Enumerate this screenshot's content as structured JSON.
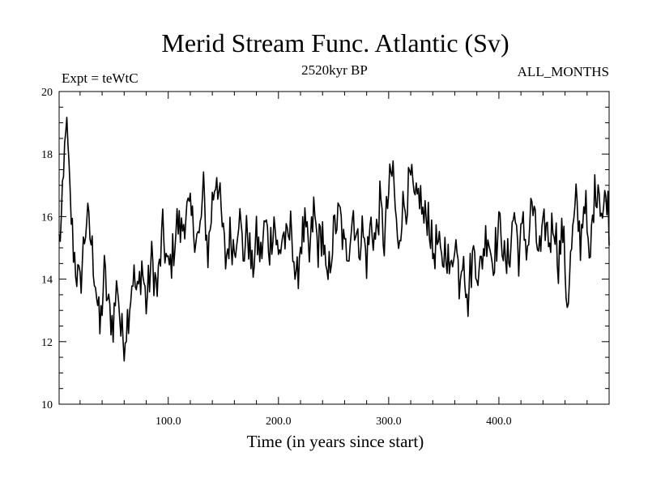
{
  "chart_data": {
    "type": "line",
    "title": "Merid Stream Func. Atlantic (Sv)",
    "subtitle_left": "Expt = teWtC",
    "subtitle_center": "2520kyr BP",
    "subtitle_right": "ALL_MONTHS",
    "xlabel": "Time (in years since start)",
    "ylabel": "",
    "xlim": [
      1,
      500
    ],
    "ylim": [
      10,
      20
    ],
    "xticks": [
      100,
      200,
      300,
      400
    ],
    "xtick_labels": [
      "100.0",
      "200.0",
      "300.0",
      "400.0"
    ],
    "yticks": [
      10,
      12,
      14,
      16,
      18,
      20
    ],
    "ytick_labels": [
      "10",
      "12",
      "14",
      "16",
      "18",
      "20"
    ],
    "series": [
      {
        "name": "Merid Stream Func. Atlantic",
        "color": "#000000",
        "keypoints": [
          [
            1,
            15.2
          ],
          [
            3,
            15.8
          ],
          [
            5,
            17.0
          ],
          [
            7,
            19.2
          ],
          [
            9,
            18.0
          ],
          [
            11,
            16.5
          ],
          [
            14,
            15.0
          ],
          [
            17,
            14.2
          ],
          [
            20,
            13.7
          ],
          [
            23,
            15.0
          ],
          [
            26,
            16.0
          ],
          [
            30,
            15.2
          ],
          [
            34,
            14.0
          ],
          [
            38,
            12.3
          ],
          [
            42,
            14.2
          ],
          [
            46,
            13.0
          ],
          [
            50,
            12.6
          ],
          [
            54,
            14.0
          ],
          [
            57,
            12.3
          ],
          [
            60,
            12.1
          ],
          [
            64,
            13.0
          ],
          [
            68,
            14.2
          ],
          [
            72,
            13.4
          ],
          [
            76,
            14.5
          ],
          [
            80,
            13.2
          ],
          [
            85,
            14.6
          ],
          [
            90,
            13.6
          ],
          [
            95,
            15.5
          ],
          [
            100,
            14.2
          ],
          [
            104,
            14.8
          ],
          [
            108,
            15.8
          ],
          [
            112,
            15.5
          ],
          [
            116,
            16.2
          ],
          [
            120,
            16.0
          ],
          [
            124,
            15.6
          ],
          [
            128,
            15.2
          ],
          [
            132,
            16.8
          ],
          [
            136,
            14.8
          ],
          [
            140,
            16.5
          ],
          [
            144,
            17.5
          ],
          [
            148,
            16.0
          ],
          [
            152,
            14.6
          ],
          [
            156,
            15.4
          ],
          [
            160,
            15.0
          ],
          [
            164,
            16.2
          ],
          [
            168,
            14.8
          ],
          [
            172,
            15.6
          ],
          [
            176,
            14.2
          ],
          [
            180,
            15.3
          ],
          [
            184,
            14.7
          ],
          [
            188,
            15.8
          ],
          [
            192,
            15.0
          ],
          [
            196,
            16.0
          ],
          [
            200,
            14.6
          ],
          [
            204,
            15.5
          ],
          [
            208,
            15.0
          ],
          [
            212,
            15.8
          ],
          [
            216,
            13.6
          ],
          [
            220,
            15.2
          ],
          [
            224,
            15.6
          ],
          [
            228,
            14.6
          ],
          [
            232,
            16.2
          ],
          [
            236,
            15.0
          ],
          [
            240,
            15.6
          ],
          [
            244,
            13.6
          ],
          [
            248,
            15.0
          ],
          [
            252,
            15.8
          ],
          [
            256,
            16.0
          ],
          [
            260,
            14.8
          ],
          [
            264,
            15.2
          ],
          [
            268,
            16.2
          ],
          [
            272,
            15.0
          ],
          [
            276,
            15.6
          ],
          [
            280,
            14.6
          ],
          [
            284,
            15.8
          ],
          [
            288,
            15.2
          ],
          [
            292,
            16.4
          ],
          [
            296,
            15.2
          ],
          [
            300,
            16.8
          ],
          [
            304,
            17.5
          ],
          [
            308,
            15.0
          ],
          [
            312,
            16.2
          ],
          [
            316,
            16.5
          ],
          [
            320,
            17.2
          ],
          [
            324,
            16.2
          ],
          [
            328,
            16.8
          ],
          [
            332,
            15.8
          ],
          [
            336,
            16.2
          ],
          [
            340,
            14.8
          ],
          [
            344,
            15.2
          ],
          [
            348,
            14.4
          ],
          [
            352,
            15.2
          ],
          [
            356,
            14.0
          ],
          [
            360,
            15.5
          ],
          [
            364,
            14.0
          ],
          [
            368,
            15.2
          ],
          [
            371,
            13.0
          ],
          [
            374,
            14.2
          ],
          [
            378,
            15.0
          ],
          [
            382,
            14.0
          ],
          [
            386,
            15.0
          ],
          [
            390,
            15.6
          ],
          [
            394,
            14.6
          ],
          [
            398,
            15.2
          ],
          [
            402,
            15.8
          ],
          [
            406,
            14.2
          ],
          [
            410,
            15.0
          ],
          [
            414,
            16.2
          ],
          [
            418,
            14.8
          ],
          [
            422,
            15.6
          ],
          [
            426,
            15.0
          ],
          [
            430,
            16.5
          ],
          [
            434,
            15.2
          ],
          [
            438,
            14.8
          ],
          [
            442,
            15.8
          ],
          [
            446,
            15.2
          ],
          [
            450,
            16.0
          ],
          [
            454,
            14.6
          ],
          [
            458,
            15.6
          ],
          [
            462,
            13.2
          ],
          [
            466,
            15.0
          ],
          [
            470,
            16.4
          ],
          [
            474,
            15.2
          ],
          [
            478,
            16.8
          ],
          [
            482,
            14.2
          ],
          [
            486,
            16.5
          ],
          [
            490,
            17.2
          ],
          [
            494,
            16.0
          ],
          [
            498,
            16.8
          ],
          [
            500,
            15.8
          ]
        ]
      }
    ]
  }
}
